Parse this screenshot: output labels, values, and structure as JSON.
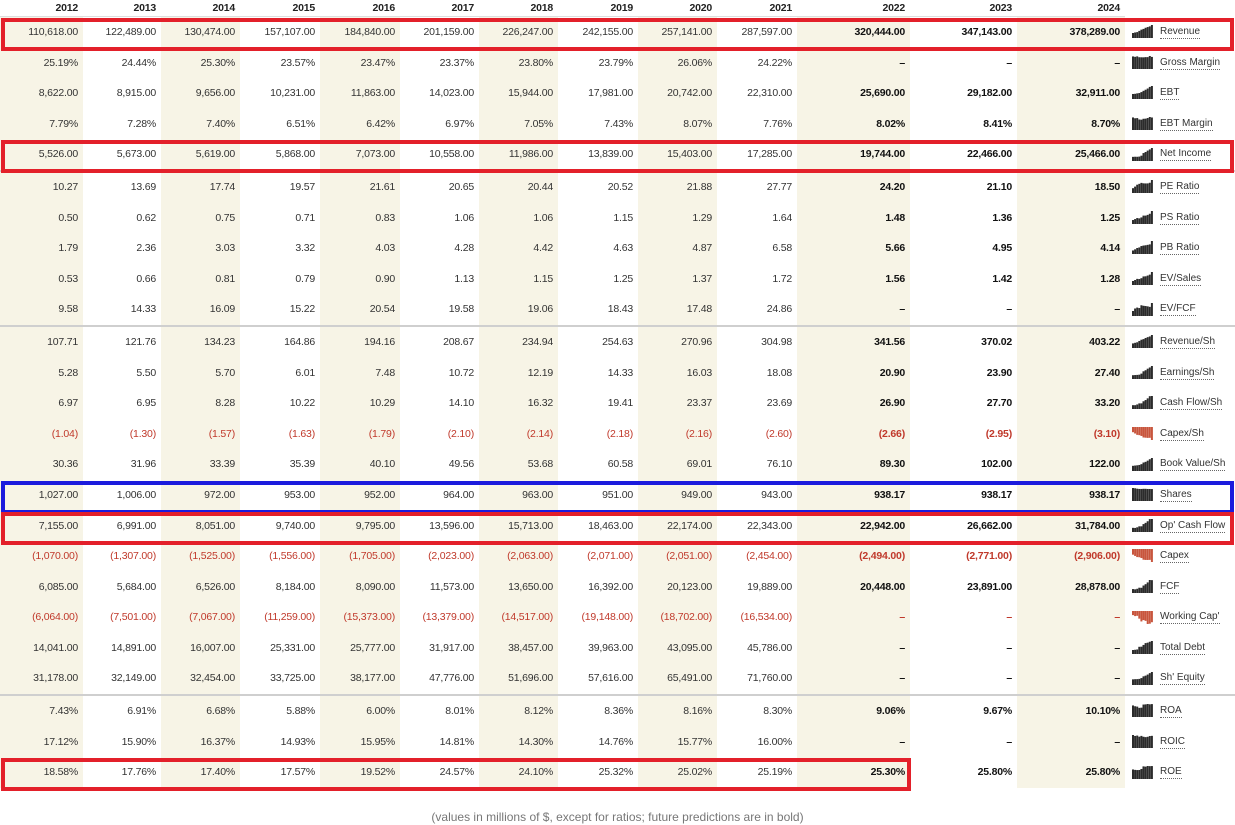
{
  "years": [
    "2012",
    "2013",
    "2014",
    "2015",
    "2016",
    "2017",
    "2018",
    "2019",
    "2020",
    "2021",
    "2022",
    "2023",
    "2024"
  ],
  "rows": [
    {
      "label": "Revenue",
      "values": [
        "110,618.00",
        "122,489.00",
        "130,474.00",
        "157,107.00",
        "184,840.00",
        "201,159.00",
        "226,247.00",
        "242,155.00",
        "257,141.00",
        "287,597.00",
        "320,444.00",
        "347,143.00",
        "378,289.00"
      ],
      "spark": "dark-icon",
      "highlight": "red"
    },
    {
      "label": "Gross Margin",
      "values": [
        "25.19%",
        "24.44%",
        "25.30%",
        "23.57%",
        "23.47%",
        "23.37%",
        "23.80%",
        "23.79%",
        "26.06%",
        "24.22%",
        "–",
        "–",
        "–"
      ],
      "spark": "dark-icon"
    },
    {
      "label": "EBT",
      "values": [
        "8,622.00",
        "8,915.00",
        "9,656.00",
        "10,231.00",
        "11,863.00",
        "14,023.00",
        "15,944.00",
        "17,981.00",
        "20,742.00",
        "22,310.00",
        "25,690.00",
        "29,182.00",
        "32,911.00"
      ],
      "spark": "dark-icon"
    },
    {
      "label": "EBT Margin",
      "values": [
        "7.79%",
        "7.28%",
        "7.40%",
        "6.51%",
        "6.42%",
        "6.97%",
        "7.05%",
        "7.43%",
        "8.07%",
        "7.76%",
        "8.02%",
        "8.41%",
        "8.70%"
      ],
      "spark": "dark-icon"
    },
    {
      "label": "Net Income",
      "values": [
        "5,526.00",
        "5,673.00",
        "5,619.00",
        "5,868.00",
        "7,073.00",
        "10,558.00",
        "11,986.00",
        "13,839.00",
        "15,403.00",
        "17,285.00",
        "19,744.00",
        "22,466.00",
        "25,466.00"
      ],
      "spark": "dark-icon",
      "highlight": "red"
    },
    {
      "label": "PE Ratio",
      "values": [
        "10.27",
        "13.69",
        "17.74",
        "19.57",
        "21.61",
        "20.65",
        "20.44",
        "20.52",
        "21.88",
        "27.77",
        "24.20",
        "21.10",
        "18.50"
      ],
      "spark": "dark-icon",
      "sep": true
    },
    {
      "label": "PS Ratio",
      "values": [
        "0.50",
        "0.62",
        "0.75",
        "0.71",
        "0.83",
        "1.06",
        "1.06",
        "1.15",
        "1.29",
        "1.64",
        "1.48",
        "1.36",
        "1.25"
      ],
      "spark": "dark-icon"
    },
    {
      "label": "PB Ratio",
      "values": [
        "1.79",
        "2.36",
        "3.03",
        "3.32",
        "4.03",
        "4.28",
        "4.42",
        "4.63",
        "4.87",
        "6.58",
        "5.66",
        "4.95",
        "4.14"
      ],
      "spark": "dark-icon"
    },
    {
      "label": "EV/Sales",
      "values": [
        "0.53",
        "0.66",
        "0.81",
        "0.79",
        "0.90",
        "1.13",
        "1.15",
        "1.25",
        "1.37",
        "1.72",
        "1.56",
        "1.42",
        "1.28"
      ],
      "spark": "dark-icon"
    },
    {
      "label": "EV/FCF",
      "values": [
        "9.58",
        "14.33",
        "16.09",
        "15.22",
        "20.54",
        "19.58",
        "19.06",
        "18.43",
        "17.48",
        "24.86",
        "–",
        "–",
        "–"
      ],
      "spark": "dark-icon"
    },
    {
      "label": "Revenue/Sh",
      "values": [
        "107.71",
        "121.76",
        "134.23",
        "164.86",
        "194.16",
        "208.67",
        "234.94",
        "254.63",
        "270.96",
        "304.98",
        "341.56",
        "370.02",
        "403.22"
      ],
      "spark": "dark-icon",
      "sep": true
    },
    {
      "label": "Earnings/Sh",
      "values": [
        "5.28",
        "5.50",
        "5.70",
        "6.01",
        "7.48",
        "10.72",
        "12.19",
        "14.33",
        "16.03",
        "18.08",
        "20.90",
        "23.90",
        "27.40"
      ],
      "spark": "dark-icon"
    },
    {
      "label": "Cash Flow/Sh",
      "values": [
        "6.97",
        "6.95",
        "8.28",
        "10.22",
        "10.29",
        "14.10",
        "16.32",
        "19.41",
        "23.37",
        "23.69",
        "26.90",
        "27.70",
        "33.20"
      ],
      "spark": "dark-icon"
    },
    {
      "label": "Capex/Sh",
      "values": [
        "(1.04)",
        "(1.30)",
        "(1.57)",
        "(1.63)",
        "(1.79)",
        "(2.10)",
        "(2.14)",
        "(2.18)",
        "(2.16)",
        "(2.60)",
        "(2.66)",
        "(2.95)",
        "(3.10)"
      ],
      "spark": "red-icon",
      "negative": true
    },
    {
      "label": "Book Value/Sh",
      "values": [
        "30.36",
        "31.96",
        "33.39",
        "35.39",
        "40.10",
        "49.56",
        "53.68",
        "60.58",
        "69.01",
        "76.10",
        "89.30",
        "102.00",
        "122.00"
      ],
      "spark": "dark-icon"
    },
    {
      "label": "Shares",
      "values": [
        "1,027.00",
        "1,006.00",
        "972.00",
        "953.00",
        "952.00",
        "964.00",
        "963.00",
        "951.00",
        "949.00",
        "943.00",
        "938.17",
        "938.17",
        "938.17"
      ],
      "spark": "dark-icon",
      "highlight": "blue"
    },
    {
      "label": "Op' Cash Flow",
      "values": [
        "7,155.00",
        "6,991.00",
        "8,051.00",
        "9,740.00",
        "9,795.00",
        "13,596.00",
        "15,713.00",
        "18,463.00",
        "22,174.00",
        "22,343.00",
        "22,942.00",
        "26,662.00",
        "31,784.00"
      ],
      "spark": "dark-icon",
      "highlight": "red"
    },
    {
      "label": "Capex",
      "values": [
        "(1,070.00)",
        "(1,307.00)",
        "(1,525.00)",
        "(1,556.00)",
        "(1,705.00)",
        "(2,023.00)",
        "(2,063.00)",
        "(2,071.00)",
        "(2,051.00)",
        "(2,454.00)",
        "(2,494.00)",
        "(2,771.00)",
        "(2,906.00)"
      ],
      "spark": "red-icon",
      "negative": true
    },
    {
      "label": "FCF",
      "values": [
        "6,085.00",
        "5,684.00",
        "6,526.00",
        "8,184.00",
        "8,090.00",
        "11,573.00",
        "13,650.00",
        "16,392.00",
        "20,123.00",
        "19,889.00",
        "20,448.00",
        "23,891.00",
        "28,878.00"
      ],
      "spark": "dark-icon"
    },
    {
      "label": "Working Cap'",
      "values": [
        "(6,064.00)",
        "(7,501.00)",
        "(7,067.00)",
        "(11,259.00)",
        "(15,373.00)",
        "(13,379.00)",
        "(14,517.00)",
        "(19,148.00)",
        "(18,702.00)",
        "(16,534.00)",
        "–",
        "–",
        "–"
      ],
      "spark": "red-icon",
      "negative": true
    },
    {
      "label": "Total Debt",
      "values": [
        "14,041.00",
        "14,891.00",
        "16,007.00",
        "25,331.00",
        "25,777.00",
        "31,917.00",
        "38,457.00",
        "39,963.00",
        "43,095.00",
        "45,786.00",
        "–",
        "–",
        "–"
      ],
      "spark": "dark-icon"
    },
    {
      "label": "Sh' Equity",
      "values": [
        "31,178.00",
        "32,149.00",
        "32,454.00",
        "33,725.00",
        "38,177.00",
        "47,776.00",
        "51,696.00",
        "57,616.00",
        "65,491.00",
        "71,760.00",
        "–",
        "–",
        "–"
      ],
      "spark": "dark-icon"
    },
    {
      "label": "ROA",
      "values": [
        "7.43%",
        "6.91%",
        "6.68%",
        "5.88%",
        "6.00%",
        "8.01%",
        "8.12%",
        "8.36%",
        "8.16%",
        "8.30%",
        "9.06%",
        "9.67%",
        "10.10%"
      ],
      "spark": "dark-icon",
      "sep": true
    },
    {
      "label": "ROIC",
      "values": [
        "17.12%",
        "15.90%",
        "16.37%",
        "14.93%",
        "15.95%",
        "14.81%",
        "14.30%",
        "14.76%",
        "15.77%",
        "16.00%",
        "–",
        "–",
        "–"
      ],
      "spark": "dark-icon"
    },
    {
      "label": "ROE",
      "values": [
        "18.58%",
        "17.76%",
        "17.40%",
        "17.57%",
        "19.52%",
        "24.57%",
        "24.10%",
        "25.32%",
        "25.02%",
        "25.19%",
        "25.30%",
        "25.80%",
        "25.80%"
      ],
      "spark": "dark-icon",
      "highlight": "red-partial"
    }
  ],
  "footnote": "(values in millions of $, except for ratios; future predictions are in bold)",
  "colors": {
    "shade": "#f7f4e6",
    "negative": "#c0392b",
    "highlight_red": "#e3202a",
    "highlight_blue": "#1b1bdd"
  }
}
